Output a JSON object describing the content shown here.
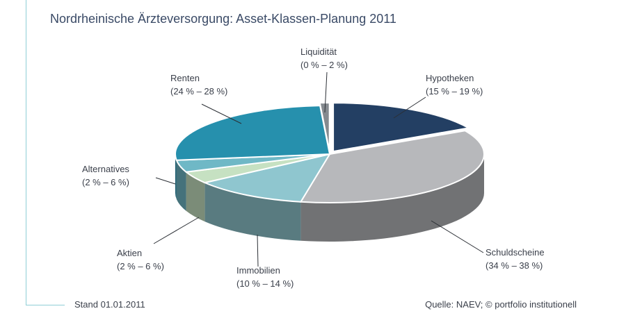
{
  "title": "Nordrheinische Ärzteversorgung: Asset-Klassen-Planung 2011",
  "footer": {
    "date": "Stand 01.01.2011",
    "source": "Quelle: NAEV; © portfolio institutionell"
  },
  "chart_data": {
    "type": "pie",
    "three_d": true,
    "title": "Nordrheinische Ärzteversorgung: Asset-Klassen-Planung 2011",
    "slices": [
      {
        "name": "Hypotheken",
        "range": "(15 % – 19 %)",
        "value": 17,
        "color": "#233f63"
      },
      {
        "name": "Schuldscheine",
        "range": "(34 % – 38 %)",
        "value": 36,
        "color": "#b7b8bb"
      },
      {
        "name": "Immobilien",
        "range": "(10 % – 14 %)",
        "value": 12,
        "color": "#8fc6cf"
      },
      {
        "name": "Aktien",
        "range": "(2 % – 6 %)",
        "value": 4,
        "color": "#c6e1c2"
      },
      {
        "name": "Alternatives",
        "range": "(2 % – 6 %)",
        "value": 4,
        "color": "#6fb8c6"
      },
      {
        "name": "Renten",
        "range": "(24 % – 28 %)",
        "value": 26,
        "color": "#2690ad"
      },
      {
        "name": "Liquidität",
        "range": "(0 % – 2 %)",
        "value": 1,
        "color": "#858a8f"
      }
    ]
  }
}
